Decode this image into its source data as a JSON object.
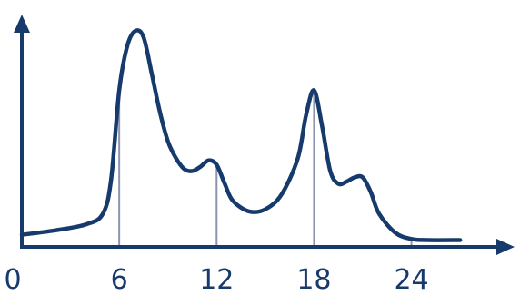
{
  "chart_data": {
    "type": "line",
    "title": "",
    "xlabel": "",
    "ylabel": "",
    "xlim": [
      0,
      28
    ],
    "ylim": [
      0,
      1
    ],
    "grid": false,
    "legend": "none",
    "x_ticks": [
      0,
      6,
      12,
      18,
      24
    ],
    "x_tick_labels": [
      "0",
      "6",
      "12",
      "18",
      "24"
    ],
    "drop_lines_at": [
      6,
      12,
      18,
      24
    ],
    "colors": {
      "line": "#153a6b",
      "axis": "#153a6b",
      "drop_line": "#8c94b0"
    },
    "series": [
      {
        "x": [
          0,
          2,
          4,
          5,
          5.5,
          6,
          6.5,
          7,
          7.5,
          8,
          8.5,
          9,
          9.5,
          10,
          10.5,
          11,
          11.5,
          12,
          12.5,
          13,
          14,
          15,
          16,
          17,
          17.5,
          18,
          18.5,
          19,
          19.5,
          20,
          20.5,
          21,
          21.5,
          22,
          23,
          24,
          25,
          27
        ],
        "y": [
          0.04,
          0.06,
          0.09,
          0.14,
          0.3,
          0.72,
          0.93,
          1.0,
          0.97,
          0.8,
          0.62,
          0.48,
          0.4,
          0.35,
          0.34,
          0.36,
          0.39,
          0.37,
          0.28,
          0.2,
          0.15,
          0.16,
          0.23,
          0.4,
          0.6,
          0.72,
          0.55,
          0.34,
          0.28,
          0.29,
          0.31,
          0.31,
          0.24,
          0.14,
          0.05,
          0.02,
          0.015,
          0.015
        ]
      }
    ]
  }
}
